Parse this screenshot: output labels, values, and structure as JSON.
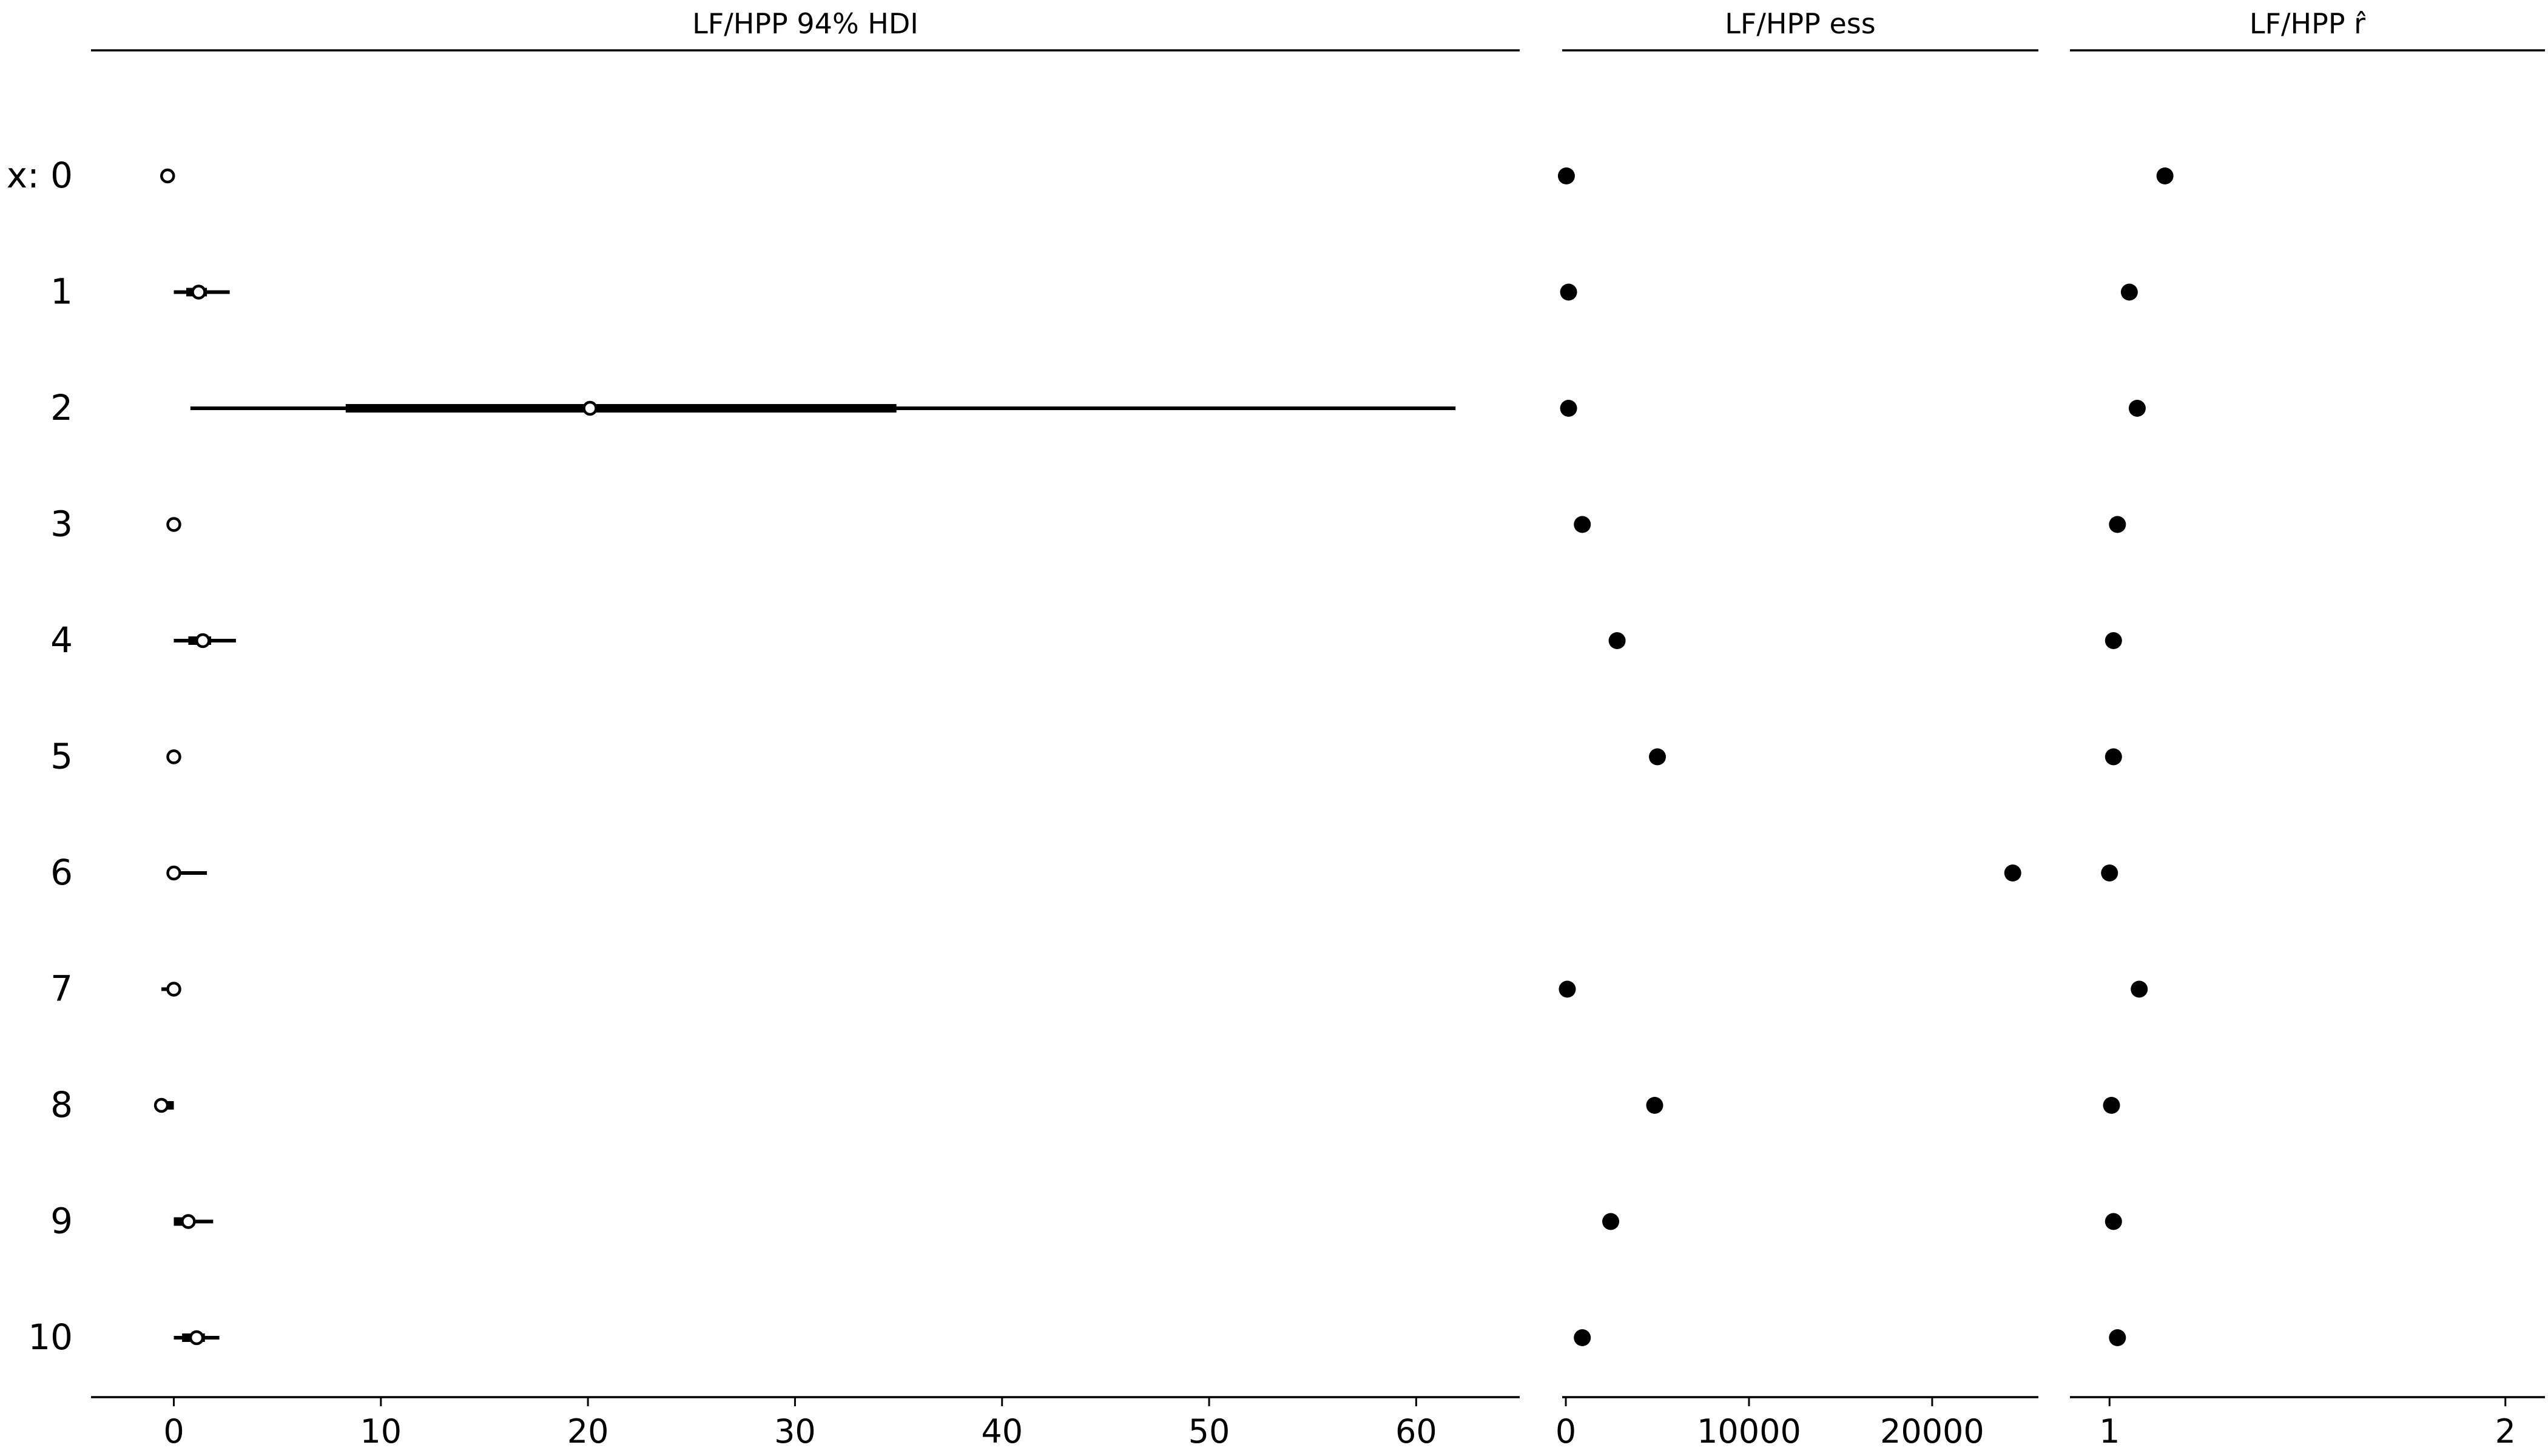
{
  "chart_data": {
    "type": "forest",
    "row_labels": [
      "x: 0",
      "1",
      "2",
      "3",
      "4",
      "5",
      "6",
      "7",
      "8",
      "9",
      "10"
    ],
    "panels": [
      {
        "title": "LF/HPP 94% HDI",
        "xlim": [
          -4,
          65
        ],
        "xticks": [
          0,
          10,
          20,
          30,
          40,
          50,
          60
        ],
        "xtick_labels": [
          "0",
          "10",
          "20",
          "30",
          "40",
          "50",
          "60"
        ],
        "rows": [
          {
            "center": -0.3,
            "hdi": [
              -0.3,
              -0.3
            ],
            "iqr": [
              -0.3,
              -0.3
            ]
          },
          {
            "center": 1.2,
            "hdi": [
              0.0,
              2.7
            ],
            "iqr": [
              0.6,
              1.6
            ]
          },
          {
            "center": 20.1,
            "hdi": [
              0.8,
              61.9
            ],
            "iqr": [
              8.3,
              34.9
            ]
          },
          {
            "center": 0.0,
            "hdi": [
              0.0,
              0.0
            ],
            "iqr": [
              0.0,
              0.0
            ]
          },
          {
            "center": 1.4,
            "hdi": [
              0.0,
              3.0
            ],
            "iqr": [
              0.7,
              1.8
            ]
          },
          {
            "center": 0.0,
            "hdi": [
              0.0,
              0.0
            ],
            "iqr": [
              0.0,
              0.0
            ]
          },
          {
            "center": 0.0,
            "hdi": [
              0.0,
              1.6
            ],
            "iqr": [
              0.0,
              0.0
            ]
          },
          {
            "center": 0.0,
            "hdi": [
              -0.6,
              0.0
            ],
            "iqr": [
              -0.3,
              0.0
            ]
          },
          {
            "center": -0.6,
            "hdi": [
              -0.6,
              0.0
            ],
            "iqr": [
              -0.4,
              0.0
            ]
          },
          {
            "center": 0.7,
            "hdi": [
              0.0,
              1.9
            ],
            "iqr": [
              0.0,
              1.0
            ]
          },
          {
            "center": 1.1,
            "hdi": [
              0.0,
              2.2
            ],
            "iqr": [
              0.4,
              1.5
            ]
          }
        ]
      },
      {
        "title": "LF/HPP ess",
        "xlim": [
          -200,
          25800
        ],
        "xticks": [
          0,
          10000,
          20000
        ],
        "xtick_labels": [
          "0",
          "10000",
          "20000"
        ],
        "values": [
          30,
          150,
          150,
          900,
          2800,
          5000,
          24400,
          80,
          4850,
          2450,
          900
        ]
      },
      {
        "title": "LF/HPP r̂",
        "xlim": [
          0.9,
          2.1
        ],
        "xticks": [
          1,
          2
        ],
        "xtick_labels": [
          "1",
          "2"
        ],
        "values": [
          1.14,
          1.05,
          1.07,
          1.02,
          1.01,
          1.01,
          1.0,
          1.075,
          1.005,
          1.01,
          1.02
        ]
      }
    ]
  }
}
